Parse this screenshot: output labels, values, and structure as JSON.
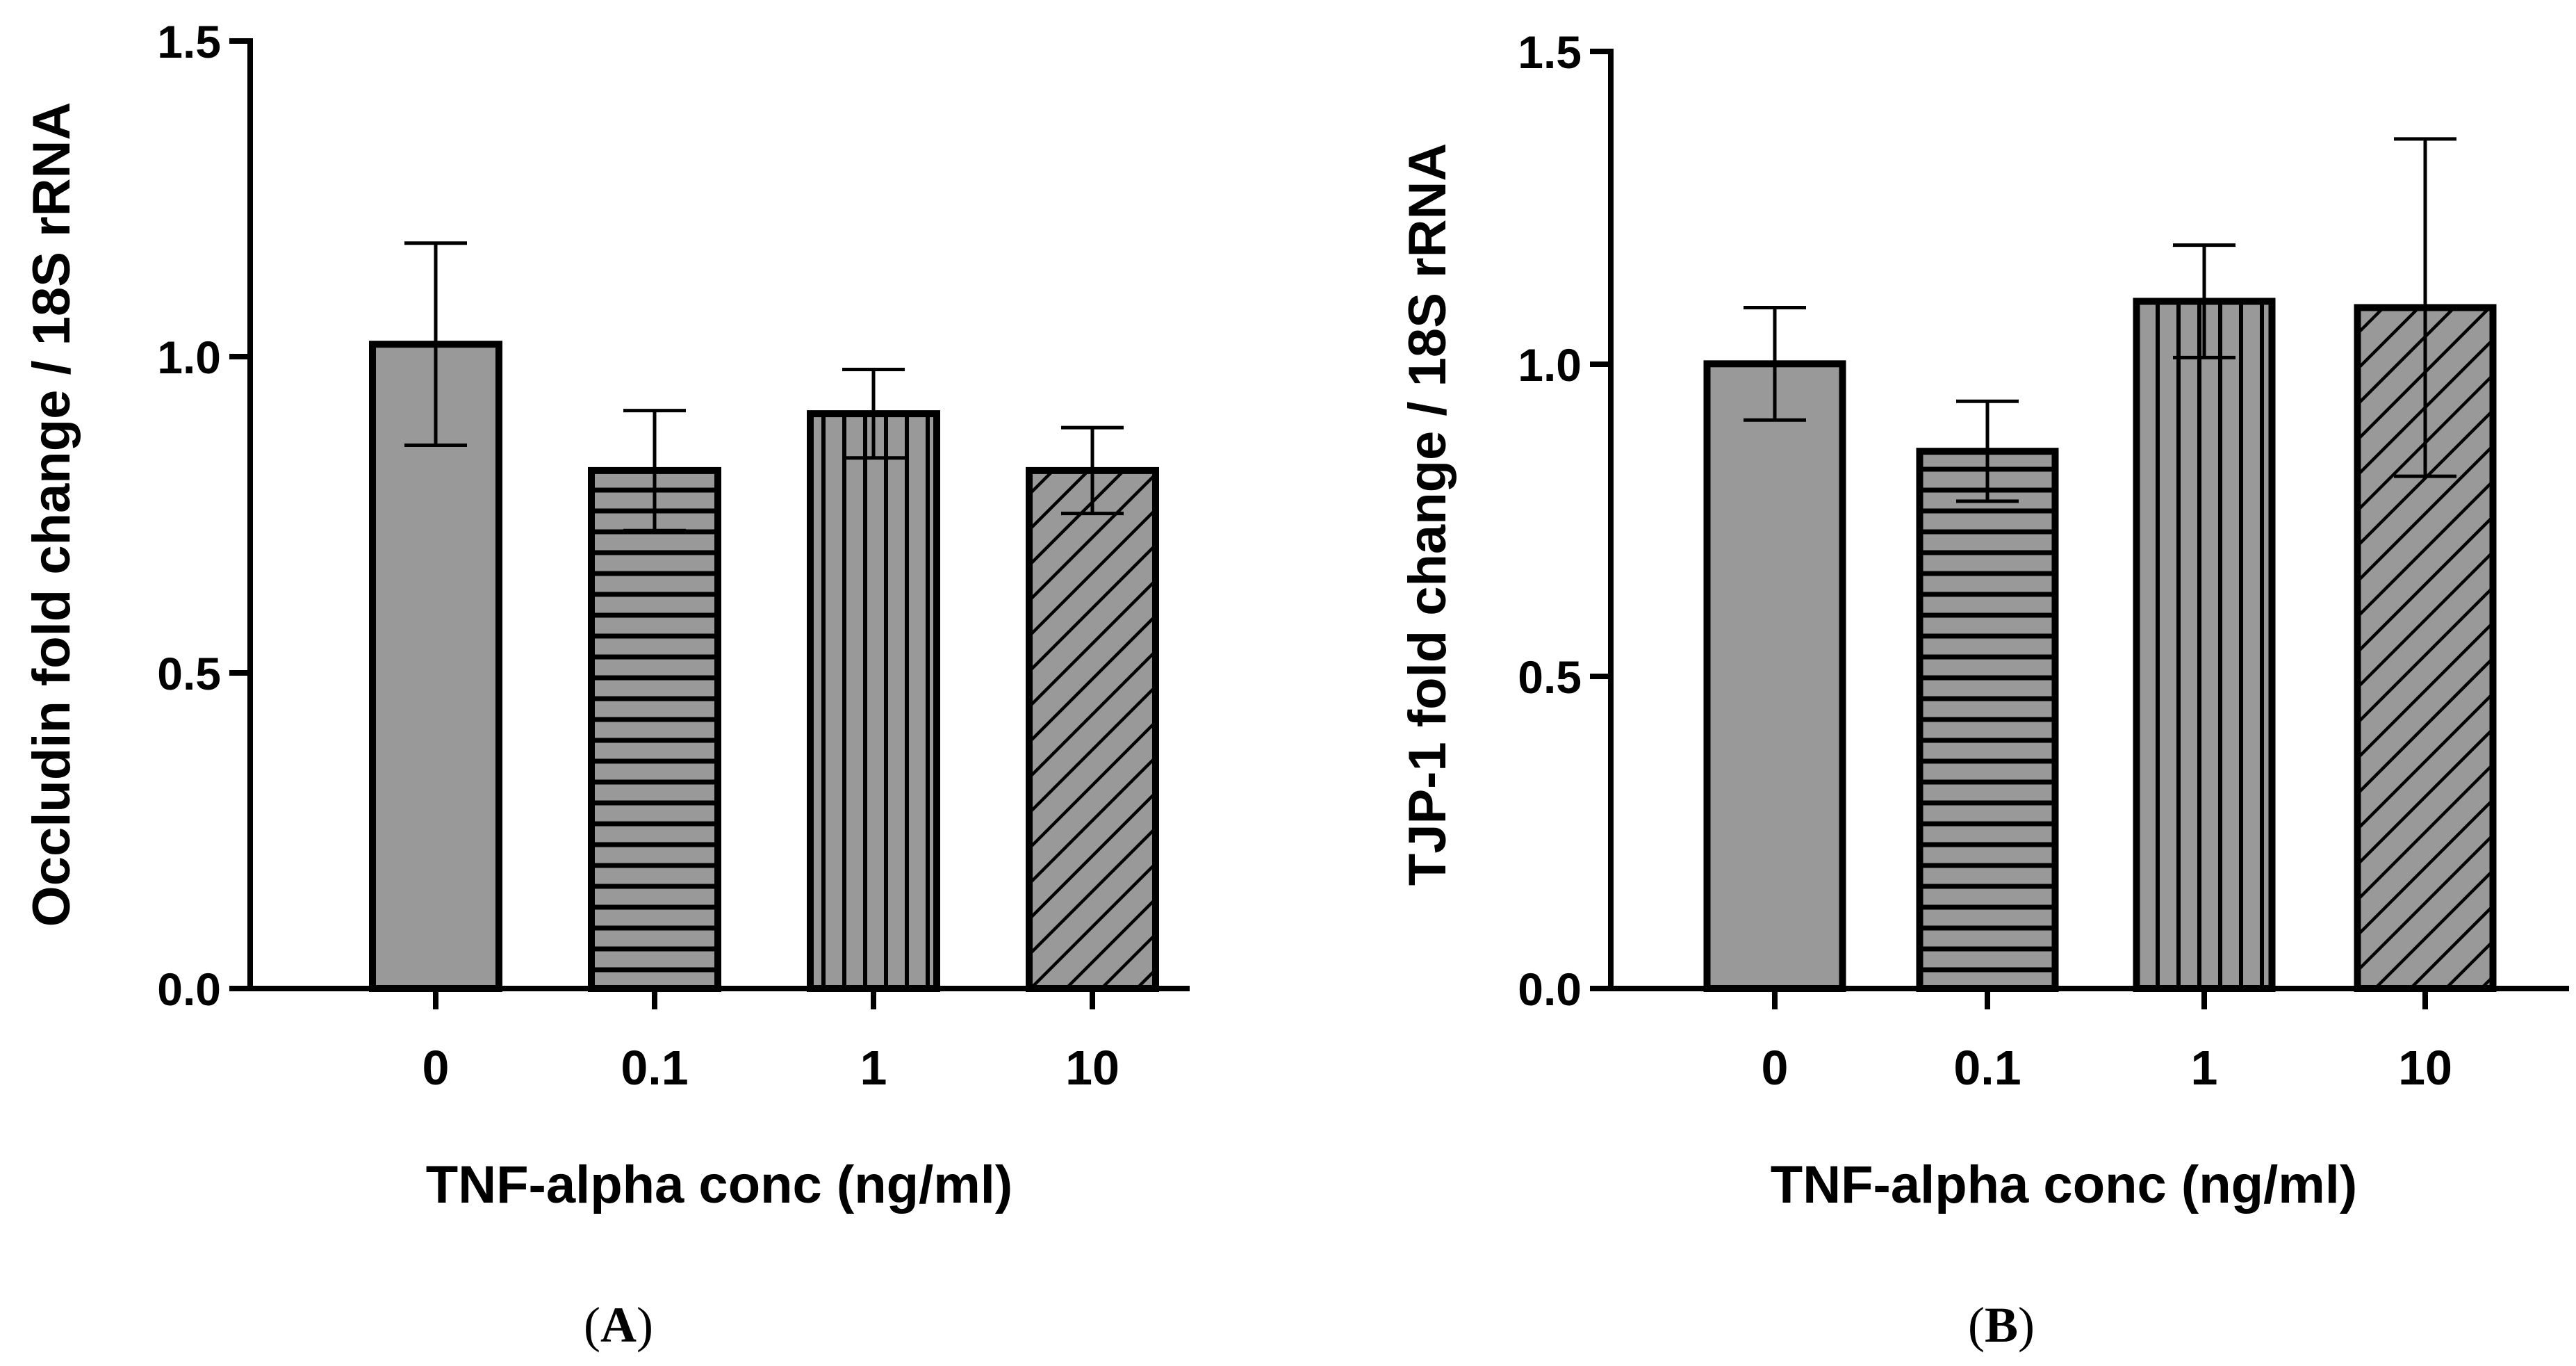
{
  "chart_data": [
    {
      "type": "bar",
      "panel": "A",
      "categories": [
        "0",
        "0.1",
        "1",
        "10"
      ],
      "values": [
        1.02,
        0.82,
        0.91,
        0.82
      ],
      "errors": [
        0.16,
        0.095,
        0.07,
        0.068
      ],
      "patterns": [
        "solid",
        "horizontal",
        "vertical",
        "diagonal"
      ],
      "ylim": [
        0,
        1.5
      ],
      "yticks": [
        "0.0",
        "0.5",
        "1.0",
        "1.5"
      ],
      "ylabel": "Occludin fold change / 18S rRNA",
      "xlabel": "TNF-alpha conc (ng/ml)",
      "label_open": "(",
      "label_letter": "A",
      "label_close": ")"
    },
    {
      "type": "bar",
      "panel": "B",
      "categories": [
        "0",
        "0.1",
        "1",
        "10"
      ],
      "values": [
        1.0,
        0.86,
        1.1,
        1.09
      ],
      "errors": [
        0.09,
        0.08,
        0.09,
        0.27
      ],
      "patterns": [
        "solid",
        "horizontal",
        "vertical",
        "diagonal"
      ],
      "ylim": [
        0,
        1.5
      ],
      "yticks": [
        "0.0",
        "0.5",
        "1.0",
        "1.5"
      ],
      "ylabel": "TJP-1 fold change / 18S rRNA",
      "xlabel": "TNF-alpha conc (ng/ml)",
      "label_open": "(",
      "label_letter": "B",
      "label_close": ")"
    }
  ],
  "colors": {
    "bar_fill": "#999999",
    "stroke": "#000000",
    "background": "#ffffff"
  }
}
